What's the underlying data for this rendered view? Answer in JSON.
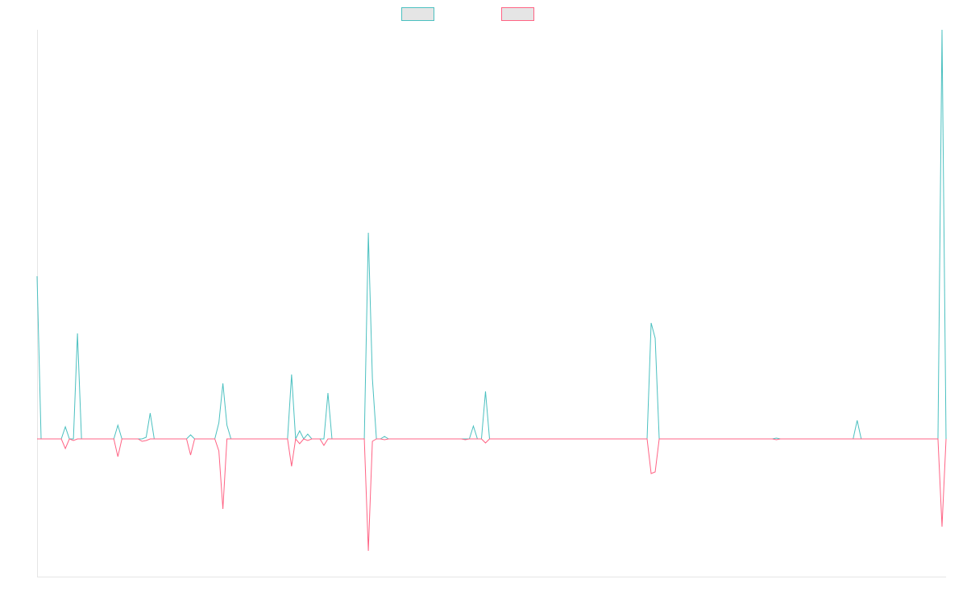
{
  "chart_data": {
    "type": "line",
    "legend": "top",
    "ylim": [
      -171,
      508
    ],
    "series": [
      {
        "color": "#4bc0c0",
        "values": [
          202,
          0,
          0,
          0,
          0,
          0,
          0,
          15,
          0,
          0,
          131,
          0,
          0,
          0,
          0,
          0,
          0,
          0,
          0,
          0,
          17,
          0,
          0,
          0,
          0,
          0,
          0,
          2,
          32,
          0,
          0,
          0,
          0,
          0,
          0,
          0,
          0,
          0,
          5,
          0,
          0,
          0,
          0,
          0,
          0,
          20,
          69,
          17,
          0,
          0,
          0,
          0,
          0,
          0,
          0,
          0,
          0,
          0,
          0,
          0,
          0,
          0,
          0,
          80,
          0,
          10,
          0,
          6,
          0,
          0,
          0,
          0,
          57,
          0,
          0,
          0,
          0,
          0,
          0,
          0,
          0,
          0,
          256,
          75,
          0,
          0,
          3,
          0,
          0,
          0,
          0,
          0,
          0,
          0,
          0,
          0,
          0,
          0,
          0,
          0,
          0,
          0,
          0,
          0,
          0,
          0,
          0,
          0,
          16,
          0,
          0,
          59,
          0,
          0,
          0,
          0,
          0,
          0,
          0,
          0,
          0,
          0,
          0,
          0,
          0,
          0,
          0,
          0,
          0,
          0,
          0,
          0,
          0,
          0,
          0,
          0,
          0,
          0,
          0,
          0,
          0,
          0,
          0,
          0,
          0,
          0,
          0,
          0,
          0,
          0,
          0,
          0,
          144,
          125,
          0,
          0,
          0,
          0,
          0,
          0,
          0,
          0,
          0,
          0,
          0,
          0,
          0,
          0,
          0,
          0,
          0,
          0,
          0,
          0,
          0,
          0,
          0,
          0,
          0,
          0,
          0,
          0,
          0,
          1,
          0,
          0,
          0,
          0,
          0,
          0,
          0,
          0,
          0,
          0,
          0,
          0,
          0,
          0,
          0,
          0,
          0,
          0,
          0,
          23,
          0,
          0,
          0,
          0,
          0,
          0,
          0,
          0,
          0,
          0,
          0,
          0,
          0,
          0,
          0,
          0,
          0,
          0,
          0,
          0,
          508,
          0
        ]
      },
      {
        "color": "#ff6384",
        "values": [
          0,
          0,
          0,
          0,
          0,
          0,
          0,
          -12,
          0,
          -2,
          0,
          0,
          0,
          0,
          0,
          0,
          0,
          0,
          0,
          0,
          -22,
          0,
          0,
          0,
          0,
          0,
          -3,
          -2,
          0,
          0,
          0,
          0,
          0,
          0,
          0,
          0,
          0,
          0,
          -20,
          0,
          0,
          0,
          0,
          0,
          0,
          -15,
          -87,
          0,
          0,
          0,
          0,
          0,
          0,
          0,
          0,
          0,
          0,
          0,
          0,
          0,
          0,
          0,
          0,
          -34,
          0,
          -6,
          0,
          -2,
          0,
          0,
          0,
          -8,
          0,
          0,
          0,
          0,
          0,
          0,
          0,
          0,
          0,
          0,
          -139,
          -3,
          0,
          0,
          -1,
          0,
          0,
          0,
          0,
          0,
          0,
          0,
          0,
          0,
          0,
          0,
          0,
          0,
          0,
          0,
          0,
          0,
          0,
          0,
          -1,
          0,
          0,
          0,
          0,
          -5,
          0,
          0,
          0,
          0,
          0,
          0,
          0,
          0,
          0,
          0,
          0,
          0,
          0,
          0,
          0,
          0,
          0,
          0,
          0,
          0,
          0,
          0,
          0,
          0,
          0,
          0,
          0,
          0,
          0,
          0,
          0,
          0,
          0,
          0,
          0,
          0,
          0,
          0,
          0,
          0,
          -43,
          -41,
          0,
          0,
          0,
          0,
          0,
          0,
          0,
          0,
          0,
          0,
          0,
          0,
          0,
          0,
          0,
          0,
          0,
          0,
          0,
          0,
          0,
          0,
          0,
          0,
          0,
          0,
          0,
          0,
          0,
          -1,
          0,
          0,
          0,
          0,
          0,
          0,
          0,
          0,
          0,
          0,
          0,
          0,
          0,
          0,
          0,
          0,
          0,
          0,
          0,
          0,
          0,
          0,
          0,
          0,
          0,
          0,
          0,
          0,
          0,
          0,
          0,
          0,
          0,
          0,
          0,
          0,
          0,
          0,
          0,
          0,
          -109,
          0
        ]
      }
    ]
  }
}
